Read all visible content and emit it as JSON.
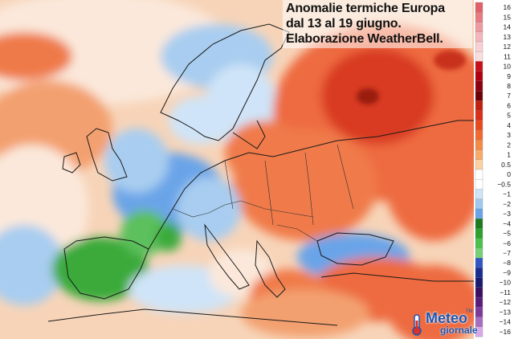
{
  "title": {
    "line1": "Anomalie termiche Europa",
    "line2": "dal 13 al 19 giugno.",
    "line3": "Elaborazione WeatherBell."
  },
  "legend": {
    "labels": [
      "16",
      "15",
      "14",
      "13",
      "12",
      "11",
      "10",
      "9",
      "8",
      "7",
      "6",
      "5",
      "4",
      "3",
      "2",
      "1",
      "0.5",
      "0",
      "−0.5",
      "−1",
      "−2",
      "−3",
      "−4",
      "−5",
      "−6",
      "−7",
      "−8",
      "−9",
      "−10",
      "−11",
      "−12",
      "−13",
      "−14",
      "−16"
    ],
    "colors": [
      "#e2606a",
      "#e87a82",
      "#ee9aa0",
      "#f4b6ba",
      "#f8cfd2",
      "#fbdde0",
      "#c8101a",
      "#b00010",
      "#8c0010",
      "#6e0008",
      "#c02010",
      "#d83018",
      "#e84a20",
      "#f06a30",
      "#f58a48",
      "#f9aa6a",
      "#fcd0a0",
      "#ffffff",
      "#ffffff",
      "#cfe4f8",
      "#a0c8f0",
      "#6aa4e8",
      "#1e7a1e",
      "#2ea02e",
      "#4cc04c",
      "#76d076",
      "#3456c0",
      "#1a2e90",
      "#1a1a70",
      "#3c1060",
      "#5a1c7a",
      "#7c3a9a",
      "#a86cc0",
      "#d8a8e8"
    ],
    "unit": ""
  },
  "logo": {
    "main": "Meteo",
    "sub": "giornale",
    "tm": "TM"
  },
  "colors": {
    "warm": "#ee6a40",
    "hot": "#d83a22",
    "cold": "#6aa4e8",
    "cool": "#a8cdf0",
    "green": "#3aaa3a",
    "neutral": "#fbeee2"
  }
}
